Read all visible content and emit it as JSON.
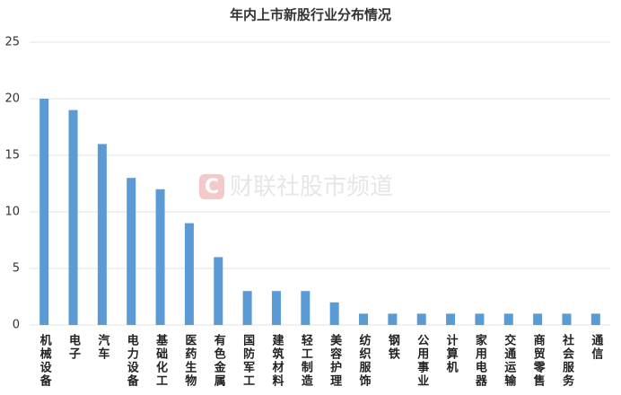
{
  "chart_data": {
    "type": "bar",
    "title": "年内上市新股行业分布情况",
    "watermark": "财联社股市频道",
    "categories": [
      "机械设备",
      "电子",
      "汽车",
      "电力设备",
      "基础化工",
      "医药生物",
      "有色金属",
      "国防军工",
      "建筑材料",
      "轻工制造",
      "美容护理",
      "纺织服饰",
      "钢铁",
      "公用事业",
      "计算机",
      "家用电器",
      "交通运输",
      "商贸零售",
      "社会服务",
      "通信"
    ],
    "values": [
      20,
      19,
      16,
      13,
      12,
      9,
      6,
      3,
      3,
      3,
      2,
      1,
      1,
      1,
      1,
      1,
      1,
      1,
      1,
      1
    ],
    "color": "#5b9bd5",
    "ylim": [
      0,
      25
    ],
    "yticks": [
      0,
      5,
      10,
      15,
      20,
      25
    ],
    "grid": true
  }
}
